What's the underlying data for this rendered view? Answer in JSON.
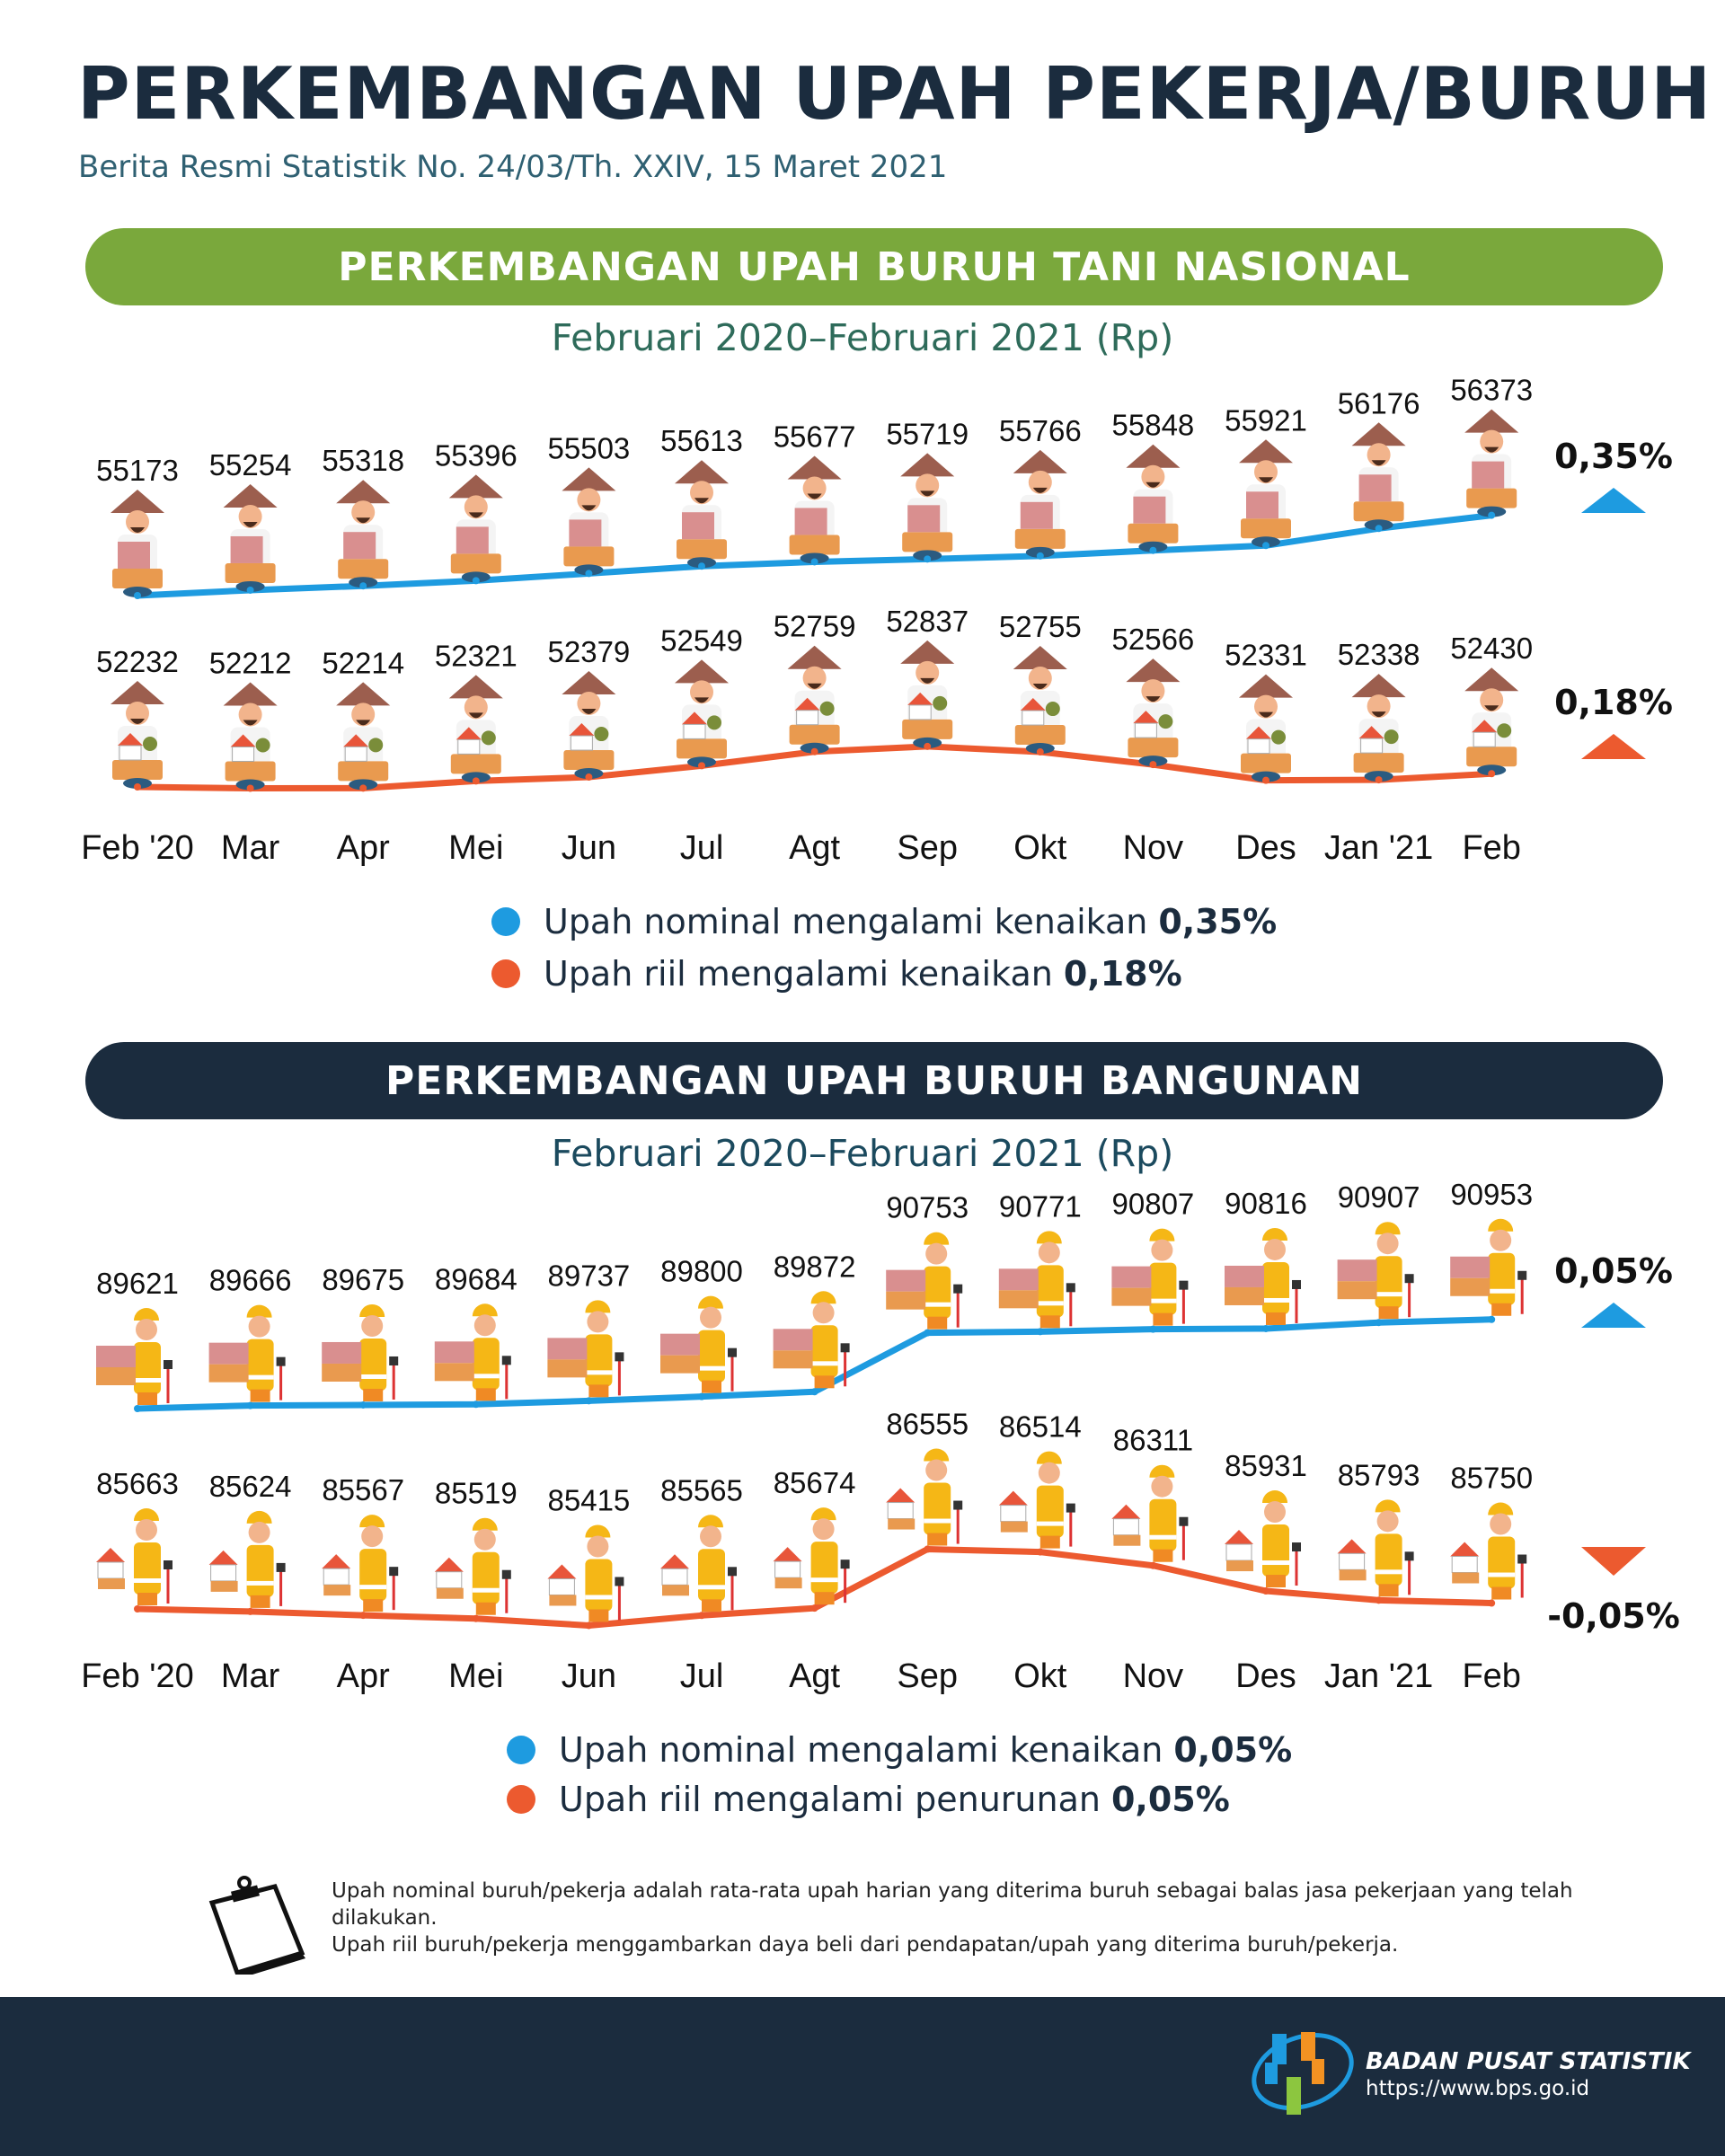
{
  "header": {
    "title": "PERKEMBANGAN UPAH PEKERJA/BURUH",
    "subtitle": "Berita Resmi Statistik No. 24/03/Th. XXIV, 15 Maret 2021"
  },
  "sections": [
    {
      "banner": "PERKEMBANGAN UPAH BURUH TANI NASIONAL",
      "period": "Februari 2020–Februari 2021 (Rp)",
      "legend": [
        {
          "text": "Upah nominal mengalami kenaikan",
          "value": "0,35%",
          "color": "#1e9be0"
        },
        {
          "text": "Upah riil mengalami kenaikan",
          "value": "0,18%",
          "color": "#ec5a2f"
        }
      ]
    },
    {
      "banner": "PERKEMBANGAN UPAH BURUH BANGUNAN",
      "period": "Februari 2020–Februari 2021 (Rp)",
      "legend": [
        {
          "text": "Upah nominal mengalami kenaikan",
          "value": "0,05%",
          "color": "#1e9be0"
        },
        {
          "text": "Upah riil mengalami penurunan",
          "value": "0,05%",
          "color": "#ec5a2f"
        }
      ]
    }
  ],
  "chart_data": [
    {
      "type": "line",
      "title": "PERKEMBANGAN UPAH BURUH TANI NASIONAL",
      "subtitle": "Februari 2020–Februari 2021 (Rp)",
      "categories": [
        "Feb '20",
        "Mar",
        "Apr",
        "Mei",
        "Jun",
        "Jul",
        "Agt",
        "Sep",
        "Okt",
        "Nov",
        "Des",
        "Jan '21",
        "Feb"
      ],
      "series": [
        {
          "name": "Upah nominal",
          "color": "#1e9be0",
          "icon": "farmer-money-icon",
          "change": "0,35%",
          "trend": "up",
          "values": [
            55173,
            55254,
            55318,
            55396,
            55503,
            55613,
            55677,
            55719,
            55766,
            55848,
            55921,
            56176,
            56373
          ]
        },
        {
          "name": "Upah riil",
          "color": "#ec5a2f",
          "icon": "farmer-house-icon",
          "change": "0,18%",
          "trend": "up",
          "values": [
            52232,
            52212,
            52214,
            52321,
            52379,
            52549,
            52759,
            52837,
            52755,
            52566,
            52331,
            52338,
            52430
          ]
        }
      ],
      "grid": false
    },
    {
      "type": "line",
      "title": "PERKEMBANGAN UPAH BURUH BANGUNAN",
      "subtitle": "Februari 2020–Februari 2021 (Rp)",
      "categories": [
        "Feb '20",
        "Mar",
        "Apr",
        "Mei",
        "Jun",
        "Jul",
        "Agt",
        "Sep",
        "Okt",
        "Nov",
        "Des",
        "Jan '21",
        "Feb"
      ],
      "series": [
        {
          "name": "Upah nominal",
          "color": "#1e9be0",
          "icon": "construction-worker-money-icon",
          "change": "0,05%",
          "trend": "up",
          "values": [
            89621,
            89666,
            89675,
            89684,
            89737,
            89800,
            89872,
            90753,
            90771,
            90807,
            90816,
            90907,
            90953
          ]
        },
        {
          "name": "Upah riil",
          "color": "#ec5a2f",
          "icon": "construction-worker-house-icon",
          "change": "-0,05%",
          "trend": "down",
          "values": [
            85663,
            85624,
            85567,
            85519,
            85415,
            85565,
            85674,
            86555,
            86514,
            86311,
            85931,
            85793,
            85750
          ]
        }
      ],
      "grid": false
    }
  ],
  "notes": [
    "Upah nominal buruh/pekerja adalah rata-rata upah harian yang diterima buruh sebagai balas jasa pekerjaan yang telah dilakukan.",
    "Upah riil buruh/pekerja menggambarkan daya beli dari pendapatan/upah yang diterima buruh/pekerja."
  ],
  "footer": {
    "org": "BADAN PUSAT STATISTIK",
    "url": "https://www.bps.go.id",
    "logo_colors": [
      "#1e9be0",
      "#f39222",
      "#8cc63f"
    ]
  }
}
